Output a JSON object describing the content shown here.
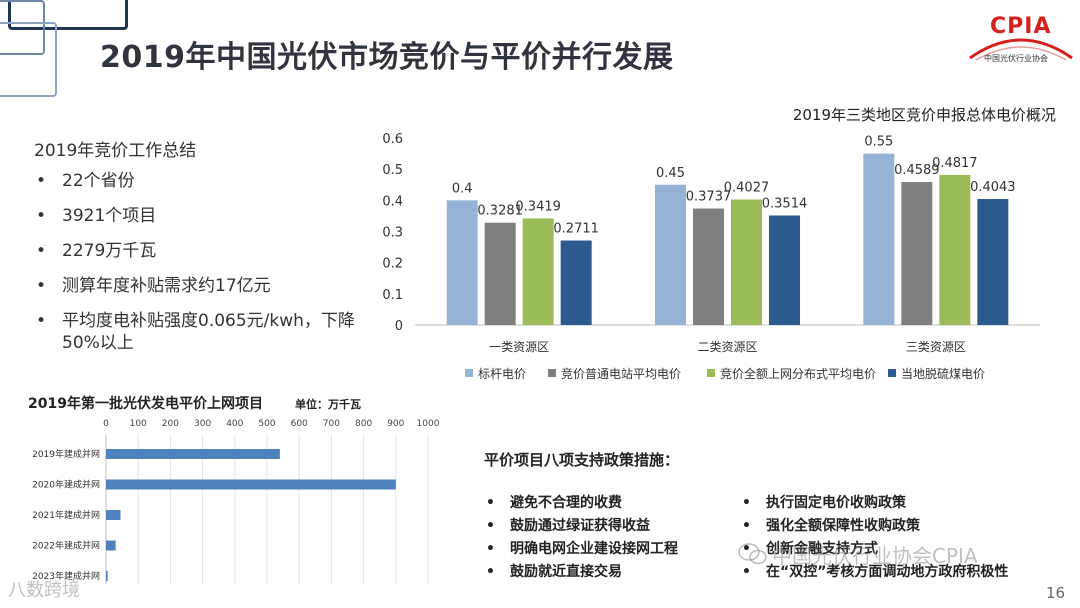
{
  "page": {
    "title": "2019年中国光伏市场竞价与平价并行发展",
    "page_number": "16"
  },
  "logo": {
    "text": "CPIA",
    "subtitle": "中国光伏行业协会",
    "color": "#d6201e"
  },
  "summary": {
    "title": "2019年竞价工作总结",
    "items": [
      "22个省份",
      "3921个项目",
      "2279万千瓦",
      "测算年度补贴需求约17亿元",
      "平均度电补贴强度0.065元/kwh，下降50%以上"
    ]
  },
  "policy": {
    "title": "平价项目八项支持政策措施：",
    "left_items": [
      "避免不合理的收费",
      "鼓励通过绿证获得收益",
      "明确电网企业建设接网工程",
      "鼓励就近直接交易"
    ],
    "right_items": [
      "执行固定电价收购政策",
      "强化全额保障性收购政策",
      "创新金融支持方式",
      "在“双控”考核方面调动地方政府积极性"
    ]
  },
  "watermarks": {
    "right": "中国光伏行业协会CPIA",
    "left": "八数跨境"
  },
  "chart_data": [
    {
      "type": "bar",
      "title": "2019年三类地区竞价申报总体电价概况",
      "categories": [
        "一类资源区",
        "二类资源区",
        "三类资源区"
      ],
      "series": [
        {
          "name": "标杆电价",
          "values": [
            0.4,
            0.45,
            0.55
          ],
          "color": "#95b3d7"
        },
        {
          "name": "竞价普通电站平均电价",
          "values": [
            0.3281,
            0.3737,
            0.4589
          ],
          "color": "#7f7f7f"
        },
        {
          "name": "竞价全额上网分布式平均电价",
          "values": [
            0.3419,
            0.4027,
            0.4817
          ],
          "color": "#9bbb59"
        },
        {
          "name": "当地脱硫煤电价",
          "values": [
            0.2711,
            0.3514,
            0.4043
          ],
          "color": "#2e5b8f"
        }
      ],
      "value_labels": [
        [
          "0.4",
          "0.45",
          "0.55"
        ],
        [
          "0.3281",
          "0.3737",
          "0.4589"
        ],
        [
          "0.3419",
          "0.4027",
          "0.4817"
        ],
        [
          "0.2711",
          "0.3514",
          "0.4043"
        ]
      ],
      "ylim": [
        0,
        0.6
      ],
      "yticks": [
        0,
        0.1,
        0.2,
        0.3,
        0.4,
        0.5,
        0.6
      ],
      "ytick_labels": [
        "0",
        "0.1",
        "0.2",
        "0.3",
        "0.4",
        "0.5",
        "0.6"
      ],
      "legend": "bottom",
      "grid": false
    },
    {
      "type": "bar",
      "orientation": "horizontal",
      "title": "2019年第一批光伏发电平价上网项目",
      "unit": "单位：万千瓦",
      "categories": [
        "2019年建成并网",
        "2020年建成并网",
        "2021年建成并网",
        "2022年建成并网",
        "2023年建成并网"
      ],
      "values": [
        540,
        900,
        45,
        30,
        5
      ],
      "xlim": [
        0,
        1000
      ],
      "xticks": [
        0,
        100,
        200,
        300,
        400,
        500,
        600,
        700,
        800,
        900,
        1000
      ],
      "xtick_labels": [
        "0",
        "100",
        "200",
        "300",
        "400",
        "500",
        "600",
        "700",
        "800",
        "900",
        "1000"
      ],
      "color": "#4f81bd",
      "grid": true
    }
  ]
}
